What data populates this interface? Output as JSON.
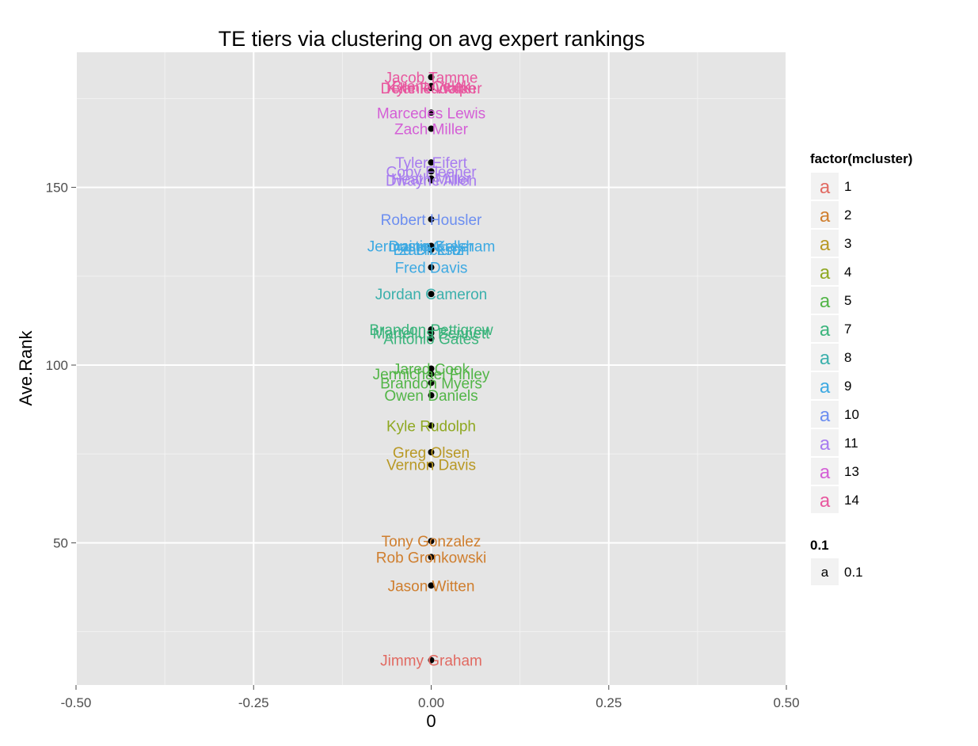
{
  "chart_data": {
    "type": "scatter",
    "title": "TE tiers via clustering on avg expert rankings",
    "xlabel": "0",
    "ylabel": "Ave.Rank",
    "xlim": [
      -0.5,
      0.5
    ],
    "ylim": [
      10,
      188
    ],
    "xticks": [
      -0.5,
      -0.25,
      0,
      0.25,
      0.5
    ],
    "xtick_labels": [
      "-0.50",
      "-0.25",
      "0.00",
      "0.25",
      "0.50"
    ],
    "yticks": [
      50,
      100,
      150
    ],
    "ytick_labels": [
      "50",
      "100",
      "150"
    ],
    "grid": true,
    "legend_position": "right",
    "legend": {
      "color_title": "factor(mcluster)",
      "color_entries": [
        {
          "label": "1",
          "color": "#E16A62"
        },
        {
          "label": "2",
          "color": "#CF7E2E"
        },
        {
          "label": "3",
          "color": "#B89824"
        },
        {
          "label": "4",
          "color": "#8FA821"
        },
        {
          "label": "5",
          "color": "#52B547"
        },
        {
          "label": "7",
          "color": "#3BB47C"
        },
        {
          "label": "8",
          "color": "#3BB0AC"
        },
        {
          "label": "9",
          "color": "#3DA9E2"
        },
        {
          "label": "10",
          "color": "#6C8EF0"
        },
        {
          "label": "11",
          "color": "#A77BF0"
        },
        {
          "label": "13",
          "color": "#D45FD6"
        },
        {
          "label": "14",
          "color": "#E8569E"
        }
      ],
      "size_title": "0.1",
      "size_entries": [
        {
          "label": "0.1",
          "key": "a"
        }
      ]
    },
    "points": [
      {
        "name": "Jimmy Graham",
        "x": 0,
        "y": 17,
        "cluster": "1"
      },
      {
        "name": "Jason Witten",
        "x": 0,
        "y": 38,
        "cluster": "2"
      },
      {
        "name": "Rob Gronkowski",
        "x": 0,
        "y": 46,
        "cluster": "2"
      },
      {
        "name": "Tony Gonzalez",
        "x": 0,
        "y": 50.5,
        "cluster": "2"
      },
      {
        "name": "Vernon Davis",
        "x": 0,
        "y": 72,
        "cluster": "3"
      },
      {
        "name": "Greg Olsen",
        "x": 0,
        "y": 75.5,
        "cluster": "3"
      },
      {
        "name": "Kyle Rudolph",
        "x": 0,
        "y": 83,
        "cluster": "4"
      },
      {
        "name": "Owen Daniels",
        "x": 0,
        "y": 91.5,
        "cluster": "5"
      },
      {
        "name": "Brandon Myers",
        "x": 0,
        "y": 95,
        "cluster": "5"
      },
      {
        "name": "Jermichael Finley",
        "x": 0,
        "y": 97.5,
        "cluster": "5"
      },
      {
        "name": "Jared Cook",
        "x": 0,
        "y": 99,
        "cluster": "5"
      },
      {
        "name": "Antonio Gates",
        "x": 0,
        "y": 107.5,
        "cluster": "7"
      },
      {
        "name": "Martellus Bennett",
        "x": 0,
        "y": 109,
        "cluster": "7"
      },
      {
        "name": "Brandon Pettigrew",
        "x": 0,
        "y": 110,
        "cluster": "7"
      },
      {
        "name": "Jordan Cameron",
        "x": 0,
        "y": 120,
        "cluster": "8"
      },
      {
        "name": "Fred Davis",
        "x": 0,
        "y": 127.5,
        "cluster": "9"
      },
      {
        "name": "Zach Ertz",
        "x": 0,
        "y": 132.5,
        "cluster": "9"
      },
      {
        "name": "Jermaine Gresham",
        "x": 0,
        "y": 133.5,
        "cluster": "9"
      },
      {
        "name": "Dustin Keller",
        "x": 0,
        "y": 133.5,
        "cluster": "9"
      },
      {
        "name": "Ed Dickson",
        "x": 0,
        "y": 132.5,
        "cluster": "9"
      },
      {
        "name": "Robert Housler",
        "x": 0,
        "y": 141,
        "cluster": "10"
      },
      {
        "name": "Dwayne Allen",
        "x": 0,
        "y": 152,
        "cluster": "11"
      },
      {
        "name": "Heath Miller",
        "x": 0,
        "y": 152.5,
        "cluster": "11"
      },
      {
        "name": "Coby Fleener",
        "x": 0,
        "y": 154.5,
        "cluster": "11"
      },
      {
        "name": "Tyler Eifert",
        "x": 0,
        "y": 157,
        "cluster": "11"
      },
      {
        "name": "Zach Miller",
        "x": 0,
        "y": 166.5,
        "cluster": "13"
      },
      {
        "name": "Marcedes Lewis",
        "x": 0,
        "y": 171,
        "cluster": "13"
      },
      {
        "name": "Delanie Walker",
        "x": 0,
        "y": 178,
        "cluster": "14"
      },
      {
        "name": "Brent Celek",
        "x": 0,
        "y": 178.5,
        "cluster": "14"
      },
      {
        "name": "Kyle Rudolph",
        "x": 0,
        "y": 178,
        "cluster": "14"
      },
      {
        "name": "Jacob Tamme",
        "x": 0,
        "y": 181,
        "cluster": "14"
      }
    ]
  }
}
